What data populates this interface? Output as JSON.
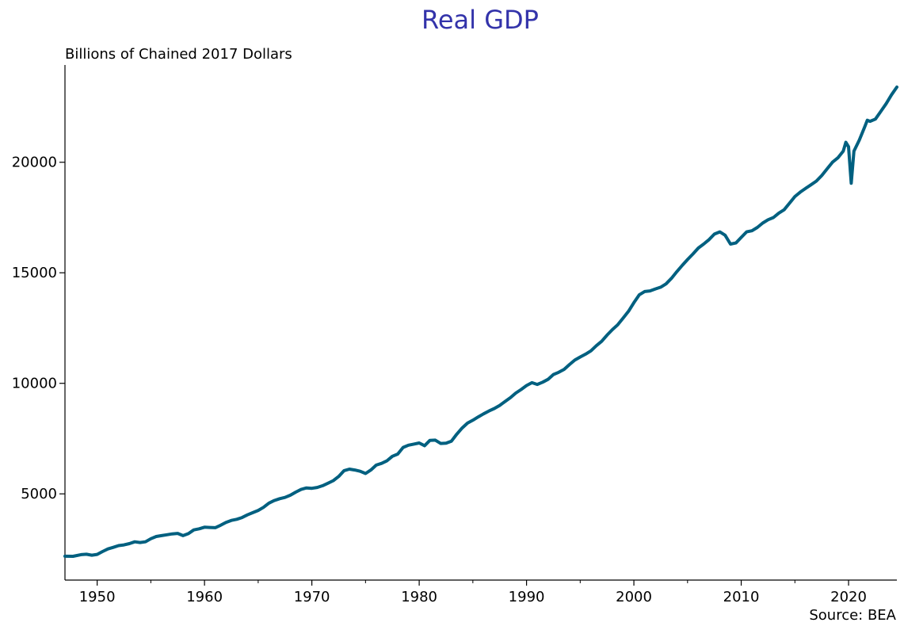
{
  "chart_data": {
    "type": "line",
    "title": "Real GDP",
    "subtitle": "Billions of Chained 2017 Dollars",
    "source": "Source: BEA",
    "xlabel": "",
    "ylabel": "",
    "xlim": [
      1947,
      2024.5
    ],
    "ylim": [
      1100,
      24400
    ],
    "x_ticks": [
      1950,
      1960,
      1970,
      1980,
      1990,
      2000,
      2010,
      2020
    ],
    "x_ticks_minor": [
      1955,
      1965,
      1975,
      1985,
      1995,
      2005,
      2015
    ],
    "y_ticks": [
      5000,
      10000,
      15000,
      20000
    ],
    "colors": {
      "title": "#3333aa",
      "line": "#006080"
    },
    "series": [
      {
        "name": "Real GDP",
        "points": [
          [
            1947.0,
            2180
          ],
          [
            1947.75,
            2175
          ],
          [
            1948.5,
            2250
          ],
          [
            1949.0,
            2270
          ],
          [
            1949.5,
            2225
          ],
          [
            1950.0,
            2260
          ],
          [
            1950.5,
            2390
          ],
          [
            1951.0,
            2510
          ],
          [
            1951.5,
            2580
          ],
          [
            1952.0,
            2660
          ],
          [
            1952.5,
            2690
          ],
          [
            1953.0,
            2750
          ],
          [
            1953.5,
            2830
          ],
          [
            1954.0,
            2800
          ],
          [
            1954.5,
            2830
          ],
          [
            1955.0,
            2970
          ],
          [
            1955.5,
            3070
          ],
          [
            1956.0,
            3110
          ],
          [
            1956.5,
            3150
          ],
          [
            1957.0,
            3190
          ],
          [
            1957.5,
            3210
          ],
          [
            1958.0,
            3110
          ],
          [
            1958.5,
            3200
          ],
          [
            1959.0,
            3370
          ],
          [
            1959.5,
            3420
          ],
          [
            1960.0,
            3490
          ],
          [
            1960.5,
            3480
          ],
          [
            1961.0,
            3470
          ],
          [
            1961.5,
            3580
          ],
          [
            1962.0,
            3710
          ],
          [
            1962.5,
            3800
          ],
          [
            1963.0,
            3850
          ],
          [
            1963.5,
            3930
          ],
          [
            1964.0,
            4050
          ],
          [
            1964.5,
            4150
          ],
          [
            1965.0,
            4250
          ],
          [
            1965.5,
            4390
          ],
          [
            1966.0,
            4580
          ],
          [
            1966.5,
            4700
          ],
          [
            1967.0,
            4780
          ],
          [
            1967.5,
            4840
          ],
          [
            1968.0,
            4940
          ],
          [
            1968.5,
            5080
          ],
          [
            1969.0,
            5200
          ],
          [
            1969.5,
            5270
          ],
          [
            1970.0,
            5250
          ],
          [
            1970.5,
            5290
          ],
          [
            1971.0,
            5370
          ],
          [
            1971.5,
            5480
          ],
          [
            1972.0,
            5600
          ],
          [
            1972.5,
            5790
          ],
          [
            1973.0,
            6050
          ],
          [
            1973.5,
            6120
          ],
          [
            1974.0,
            6080
          ],
          [
            1974.5,
            6020
          ],
          [
            1975.0,
            5920
          ],
          [
            1975.5,
            6080
          ],
          [
            1976.0,
            6300
          ],
          [
            1976.5,
            6380
          ],
          [
            1977.0,
            6500
          ],
          [
            1977.5,
            6700
          ],
          [
            1978.0,
            6800
          ],
          [
            1978.5,
            7100
          ],
          [
            1979.0,
            7200
          ],
          [
            1979.5,
            7250
          ],
          [
            1980.0,
            7300
          ],
          [
            1980.5,
            7180
          ],
          [
            1981.0,
            7420
          ],
          [
            1981.5,
            7430
          ],
          [
            1982.0,
            7280
          ],
          [
            1982.5,
            7290
          ],
          [
            1983.0,
            7380
          ],
          [
            1983.5,
            7700
          ],
          [
            1984.0,
            7980
          ],
          [
            1984.5,
            8200
          ],
          [
            1985.0,
            8330
          ],
          [
            1985.5,
            8480
          ],
          [
            1986.0,
            8620
          ],
          [
            1986.5,
            8750
          ],
          [
            1987.0,
            8860
          ],
          [
            1987.5,
            9000
          ],
          [
            1988.0,
            9180
          ],
          [
            1988.5,
            9350
          ],
          [
            1989.0,
            9560
          ],
          [
            1989.5,
            9720
          ],
          [
            1990.0,
            9900
          ],
          [
            1990.5,
            10030
          ],
          [
            1991.0,
            9950
          ],
          [
            1991.5,
            10050
          ],
          [
            1992.0,
            10180
          ],
          [
            1992.5,
            10400
          ],
          [
            1993.0,
            10500
          ],
          [
            1993.5,
            10630
          ],
          [
            1994.0,
            10850
          ],
          [
            1994.5,
            11050
          ],
          [
            1995.0,
            11190
          ],
          [
            1995.5,
            11320
          ],
          [
            1996.0,
            11470
          ],
          [
            1996.5,
            11700
          ],
          [
            1997.0,
            11900
          ],
          [
            1997.5,
            12180
          ],
          [
            1998.0,
            12430
          ],
          [
            1998.5,
            12650
          ],
          [
            1999.0,
            12950
          ],
          [
            1999.5,
            13260
          ],
          [
            2000.0,
            13650
          ],
          [
            2000.5,
            14000
          ],
          [
            2001.0,
            14150
          ],
          [
            2001.5,
            14180
          ],
          [
            2002.0,
            14270
          ],
          [
            2002.5,
            14350
          ],
          [
            2003.0,
            14500
          ],
          [
            2003.5,
            14750
          ],
          [
            2004.0,
            15050
          ],
          [
            2004.5,
            15330
          ],
          [
            2005.0,
            15600
          ],
          [
            2005.5,
            15850
          ],
          [
            2006.0,
            16120
          ],
          [
            2006.5,
            16300
          ],
          [
            2007.0,
            16500
          ],
          [
            2007.5,
            16750
          ],
          [
            2008.0,
            16850
          ],
          [
            2008.5,
            16700
          ],
          [
            2009.0,
            16300
          ],
          [
            2009.5,
            16350
          ],
          [
            2010.0,
            16600
          ],
          [
            2010.5,
            16850
          ],
          [
            2011.0,
            16900
          ],
          [
            2011.5,
            17050
          ],
          [
            2012.0,
            17250
          ],
          [
            2012.5,
            17400
          ],
          [
            2013.0,
            17500
          ],
          [
            2013.5,
            17700
          ],
          [
            2014.0,
            17850
          ],
          [
            2014.5,
            18150
          ],
          [
            2015.0,
            18450
          ],
          [
            2015.5,
            18650
          ],
          [
            2016.0,
            18820
          ],
          [
            2016.5,
            18980
          ],
          [
            2017.0,
            19150
          ],
          [
            2017.5,
            19400
          ],
          [
            2018.0,
            19700
          ],
          [
            2018.5,
            20000
          ],
          [
            2019.0,
            20200
          ],
          [
            2019.5,
            20500
          ],
          [
            2019.75,
            20900
          ],
          [
            2020.0,
            20700
          ],
          [
            2020.25,
            19050
          ],
          [
            2020.5,
            20500
          ],
          [
            2021.0,
            21000
          ],
          [
            2021.5,
            21600
          ],
          [
            2021.75,
            21900
          ],
          [
            2022.0,
            21850
          ],
          [
            2022.5,
            21950
          ],
          [
            2023.0,
            22300
          ],
          [
            2023.5,
            22650
          ],
          [
            2024.0,
            23050
          ],
          [
            2024.5,
            23400
          ]
        ]
      }
    ]
  }
}
